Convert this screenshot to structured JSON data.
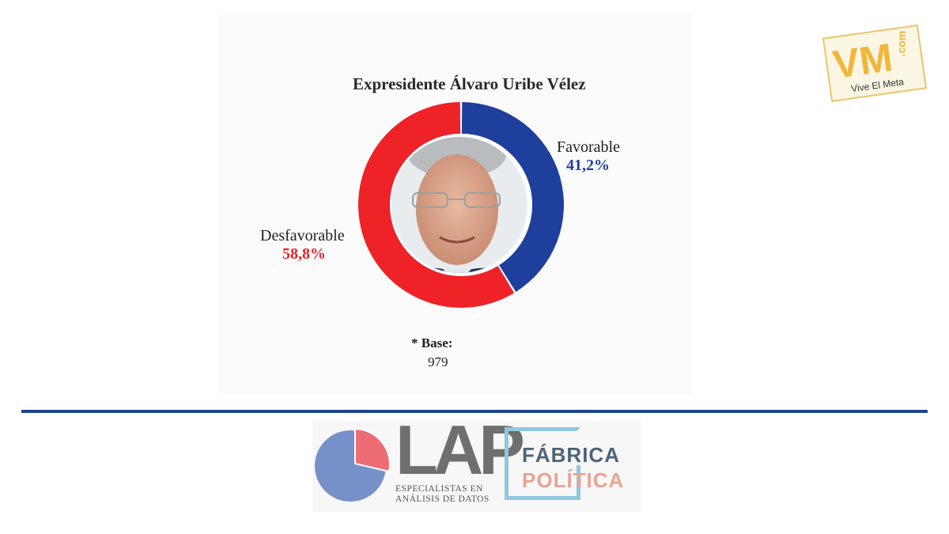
{
  "chart_data": {
    "type": "pie",
    "title": "Expresidente Álvaro Uribe Vélez",
    "slices": [
      {
        "name": "Favorable",
        "value": 41.2,
        "value_label": "41,2%",
        "color": "#1e3f9c"
      },
      {
        "name": "Desfavorable",
        "value": 58.8,
        "value_label": "58,8%",
        "color": "#ee2227"
      }
    ],
    "center_image": "portrait",
    "base_label": "* Base:",
    "base_value": "979"
  },
  "footer": {
    "lap_logo_text": "LAP",
    "lap_tagline_1": "ESPECIALISTAS EN",
    "lap_tagline_2": "ANÁLISIS DE DATOS",
    "fab_line1": "FÁBRICA",
    "fab_line2": "POLÍTICA"
  },
  "watermark": {
    "brand": "VM",
    "domain": ".com",
    "tagline": "Vive El Meta"
  },
  "colors": {
    "divider": "#1f4690",
    "lap_pie_main": "#7591c7",
    "lap_pie_slice": "#ee6c73",
    "fab_frame": "#8fc8df"
  }
}
